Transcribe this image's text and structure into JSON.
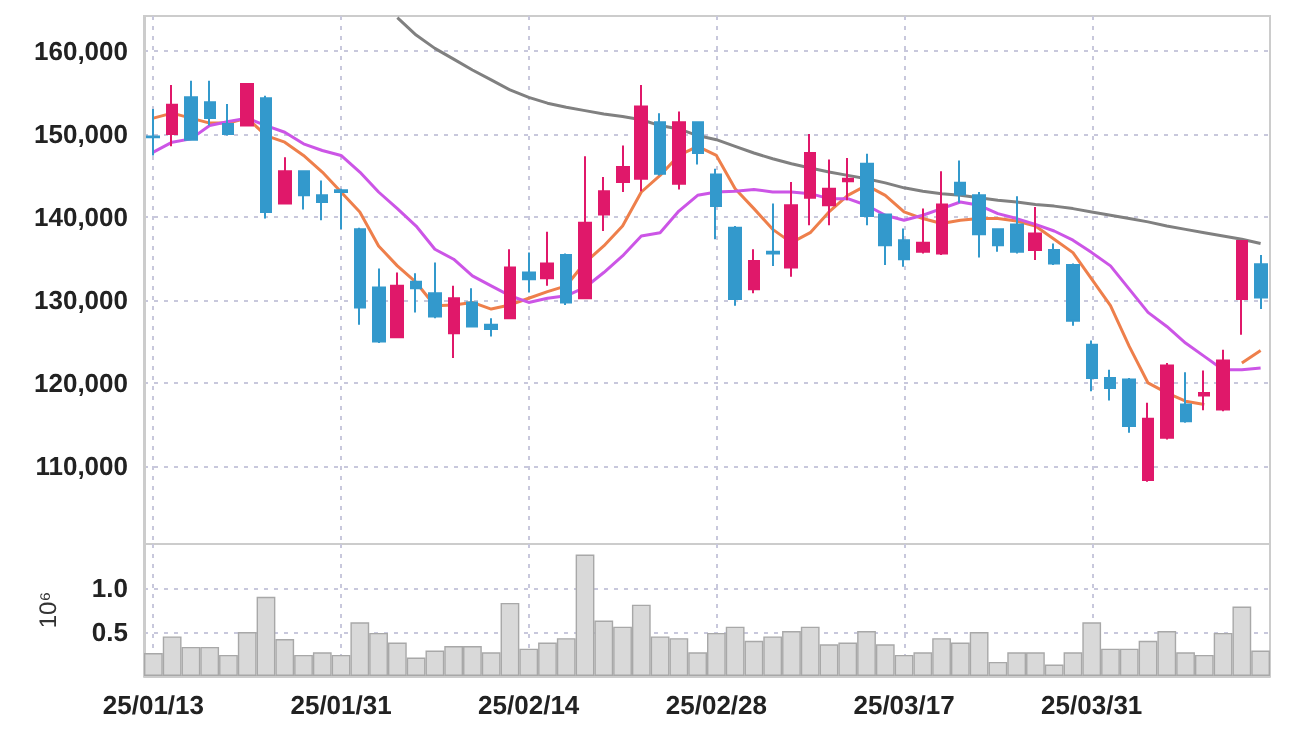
{
  "chart_data": [
    {
      "type": "candlestick",
      "categories": [
        null,
        null,
        null,
        null,
        null,
        null,
        null,
        null,
        null,
        null,
        null,
        null,
        null,
        null,
        null,
        null,
        null,
        null,
        null,
        null,
        null,
        null,
        null,
        null,
        null,
        null,
        null,
        null,
        null,
        null,
        null,
        null,
        null,
        null,
        null,
        null,
        null,
        null,
        null,
        null,
        null,
        null,
        null,
        null,
        null,
        null,
        null,
        null,
        null,
        null,
        null,
        null,
        null,
        null,
        null,
        null,
        null,
        null,
        null,
        null
      ],
      "ohlc": [
        [
          149700,
          153000,
          147400,
          149600
        ],
        [
          150000,
          155900,
          148500,
          153500
        ],
        [
          154400,
          156400,
          149300,
          149300
        ],
        [
          153800,
          156400,
          151000,
          151900
        ],
        [
          151200,
          153600,
          149800,
          150000
        ],
        [
          151000,
          156100,
          150900,
          156000
        ],
        [
          154300,
          154600,
          139800,
          140600
        ],
        [
          141600,
          147200,
          141500,
          145500
        ],
        [
          145500,
          145500,
          140900,
          142600
        ],
        [
          142600,
          144400,
          139600,
          141800
        ],
        [
          143200,
          143400,
          138500,
          143000
        ],
        [
          138500,
          138700,
          127000,
          129100
        ],
        [
          131500,
          133800,
          124800,
          125000
        ],
        [
          125500,
          133300,
          125400,
          131700
        ],
        [
          132200,
          133200,
          128500,
          131400
        ],
        [
          130800,
          134500,
          127800,
          128000
        ],
        [
          126000,
          131700,
          123000,
          130200
        ],
        [
          129700,
          131400,
          126700,
          126800
        ],
        [
          127000,
          127800,
          125600,
          126500
        ],
        [
          127800,
          136100,
          127700,
          133900
        ],
        [
          133300,
          135700,
          130900,
          132500
        ],
        [
          132600,
          138200,
          131700,
          134400
        ],
        [
          135400,
          135600,
          129400,
          129700
        ],
        [
          130200,
          147300,
          130100,
          139300
        ],
        [
          140300,
          144800,
          138300,
          143100
        ],
        [
          144200,
          148600,
          143000,
          146000
        ],
        [
          144600,
          155900,
          143100,
          153300
        ],
        [
          151400,
          152500,
          145000,
          145200
        ],
        [
          144000,
          152700,
          143300,
          151400
        ],
        [
          151400,
          151400,
          146300,
          147700
        ],
        [
          145100,
          145800,
          137300,
          141300
        ],
        [
          138700,
          138900,
          129300,
          130100
        ],
        [
          131300,
          136100,
          130800,
          134700
        ],
        [
          135800,
          141600,
          134100,
          135600
        ],
        [
          133900,
          144200,
          132800,
          141400
        ],
        [
          142300,
          150000,
          139000,
          147700
        ],
        [
          141400,
          146900,
          139000,
          143400
        ],
        [
          144300,
          147100,
          142000,
          144600
        ],
        [
          146400,
          147600,
          139000,
          140100
        ],
        [
          140300,
          140300,
          134200,
          136600
        ],
        [
          137200,
          138600,
          134000,
          134900
        ],
        [
          135800,
          141000,
          135600,
          136900
        ],
        [
          135600,
          145500,
          135400,
          141500
        ],
        [
          144100,
          146800,
          141700,
          142700
        ],
        [
          142600,
          143000,
          135100,
          137900
        ],
        [
          138500,
          138500,
          135800,
          136600
        ],
        [
          139100,
          142500,
          135600,
          135800
        ],
        [
          136000,
          141200,
          134800,
          138000
        ],
        [
          136000,
          136800,
          134200,
          134400
        ],
        [
          134200,
          134400,
          126900,
          127500
        ],
        [
          124600,
          125100,
          119000,
          120600
        ],
        [
          120600,
          121600,
          117900,
          119400
        ],
        [
          120400,
          120600,
          114000,
          114800
        ],
        [
          108300,
          117600,
          108100,
          115700
        ],
        [
          113400,
          122400,
          113200,
          122100
        ],
        [
          117400,
          121300,
          115200,
          115400
        ],
        [
          118500,
          121500,
          116700,
          118800
        ],
        [
          116800,
          124000,
          116600,
          122700
        ],
        [
          130100,
          137100,
          125800,
          137100
        ],
        [
          134300,
          135400,
          128900,
          130300
        ]
      ],
      "colors": [
        "#3399cc",
        "#e0186a",
        "#3399cc",
        "#3399cc",
        "#3399cc",
        "#e0186a",
        "#3399cc",
        "#e0186a",
        "#3399cc",
        "#3399cc",
        "#3399cc",
        "#3399cc",
        "#3399cc",
        "#e0186a",
        "#3399cc",
        "#3399cc",
        "#e0186a",
        "#3399cc",
        "#3399cc",
        "#e0186a",
        "#3399cc",
        "#e0186a",
        "#3399cc",
        "#e0186a",
        "#e0186a",
        "#e0186a",
        "#e0186a",
        "#3399cc",
        "#e0186a",
        "#3399cc",
        "#3399cc",
        "#3399cc",
        "#e0186a",
        "#3399cc",
        "#e0186a",
        "#e0186a",
        "#e0186a",
        "#e0186a",
        "#3399cc",
        "#3399cc",
        "#3399cc",
        "#e0186a",
        "#e0186a",
        "#3399cc",
        "#3399cc",
        "#3399cc",
        "#3399cc",
        "#e0186a",
        "#3399cc",
        "#3399cc",
        "#3399cc",
        "#3399cc",
        "#3399cc",
        "#e0186a",
        "#e0186a",
        "#3399cc",
        "#e0186a",
        "#e0186a",
        "#e0186a",
        "#3399cc"
      ],
      "series": [
        {
          "type": "line",
          "color": "#808080",
          "values": [
            null,
            null,
            null,
            null,
            null,
            null,
            null,
            null,
            null,
            null,
            null,
            null,
            null,
            164000,
            161900,
            160300,
            159000,
            157700,
            156500,
            155300,
            154400,
            153700,
            153200,
            152800,
            152400,
            152100,
            151700,
            151000,
            150600,
            149800,
            149300,
            148500,
            147700,
            147000,
            146400,
            145900,
            145400,
            145000,
            144600,
            144100,
            143500,
            143100,
            142800,
            142600,
            142300,
            142000,
            141800,
            141500,
            141300,
            141000,
            140600,
            140200,
            139800,
            139400,
            138900,
            138500,
            138100,
            137700,
            137300,
            136800
          ]
        },
        {
          "type": "line",
          "color": "#cc55e6",
          "values": [
            147800,
            149000,
            149400,
            151000,
            151500,
            151900,
            151000,
            150200,
            148800,
            148000,
            147400,
            145400,
            143000,
            141000,
            138900,
            136100,
            134900,
            132900,
            131700,
            130500,
            129700,
            130200,
            130500,
            131500,
            133300,
            135300,
            137700,
            138100,
            140700,
            142600,
            143000,
            143100,
            143300,
            143000,
            143000,
            142800,
            142200,
            142200,
            141400,
            140200,
            139600,
            140200,
            141000,
            141800,
            141400,
            140400,
            139800,
            139100,
            138300,
            137200,
            135700,
            134100,
            131300,
            128500,
            126800,
            124800,
            123200,
            121600,
            121600,
            121800
          ]
        },
        {
          "type": "line",
          "color": "#ee7f4b",
          "values": [
            151900,
            152500,
            151900,
            151300,
            151300,
            151900,
            149800,
            149000,
            147400,
            145400,
            143000,
            140600,
            136500,
            134100,
            132100,
            129300,
            129400,
            129700,
            128900,
            129400,
            130200,
            131000,
            131700,
            134500,
            136500,
            138900,
            143000,
            145000,
            147400,
            148500,
            147400,
            143400,
            141000,
            138500,
            136900,
            138100,
            140600,
            142600,
            143800,
            142600,
            140600,
            139800,
            139200,
            139600,
            139800,
            139800,
            139500,
            138900,
            137300,
            135700,
            132500,
            129300,
            124400,
            120000,
            118800,
            117800,
            117400,
            null,
            122400,
            123900
          ]
        }
      ],
      "ylim": [
        100600,
        164200
      ],
      "yticks": [
        {
          "value": 110000,
          "label": "110,000"
        },
        {
          "value": 120000,
          "label": "120,000"
        },
        {
          "value": 130000,
          "label": "130,000"
        },
        {
          "value": 140000,
          "label": "140,000"
        },
        {
          "value": 150000,
          "label": "150,000"
        },
        {
          "value": 160000,
          "label": "160,000"
        }
      ],
      "grid": true,
      "tick_labels": "y"
    },
    {
      "type": "bar",
      "categories": [
        "25/01/13",
        null,
        null,
        null,
        null,
        null,
        null,
        null,
        null,
        null,
        "25/01/31",
        null,
        null,
        null,
        null,
        null,
        null,
        null,
        null,
        null,
        "25/02/14",
        null,
        null,
        null,
        null,
        null,
        null,
        null,
        null,
        null,
        "25/02/28",
        null,
        null,
        null,
        null,
        null,
        null,
        null,
        null,
        null,
        "25/03/17",
        null,
        null,
        null,
        null,
        null,
        null,
        null,
        null,
        null,
        "25/03/31",
        null,
        null,
        null,
        null,
        null,
        null,
        null,
        null,
        null
      ],
      "values": [
        0.26,
        0.45,
        0.33,
        0.33,
        0.24,
        0.5,
        0.9,
        0.42,
        0.24,
        0.27,
        0.24,
        0.61,
        0.49,
        0.38,
        0.21,
        0.29,
        0.34,
        0.34,
        0.27,
        0.83,
        0.31,
        0.38,
        0.43,
        1.38,
        0.63,
        0.56,
        0.81,
        0.45,
        0.43,
        0.27,
        0.49,
        0.56,
        0.4,
        0.45,
        0.51,
        0.56,
        0.36,
        0.38,
        0.51,
        0.36,
        0.24,
        0.27,
        0.43,
        0.38,
        0.5,
        0.16,
        0.27,
        0.27,
        0.13,
        0.27,
        0.61,
        0.31,
        0.31,
        0.4,
        0.51,
        0.27,
        0.24,
        0.49,
        0.79,
        0.29
      ],
      "color": "#d9d9d9",
      "ylabel": "10⁶",
      "ylim": [
        0,
        1.5
      ],
      "yticks": [
        0.5,
        {
          "value": 1,
          "label": "1.0"
        }
      ],
      "grid": true
    }
  ]
}
